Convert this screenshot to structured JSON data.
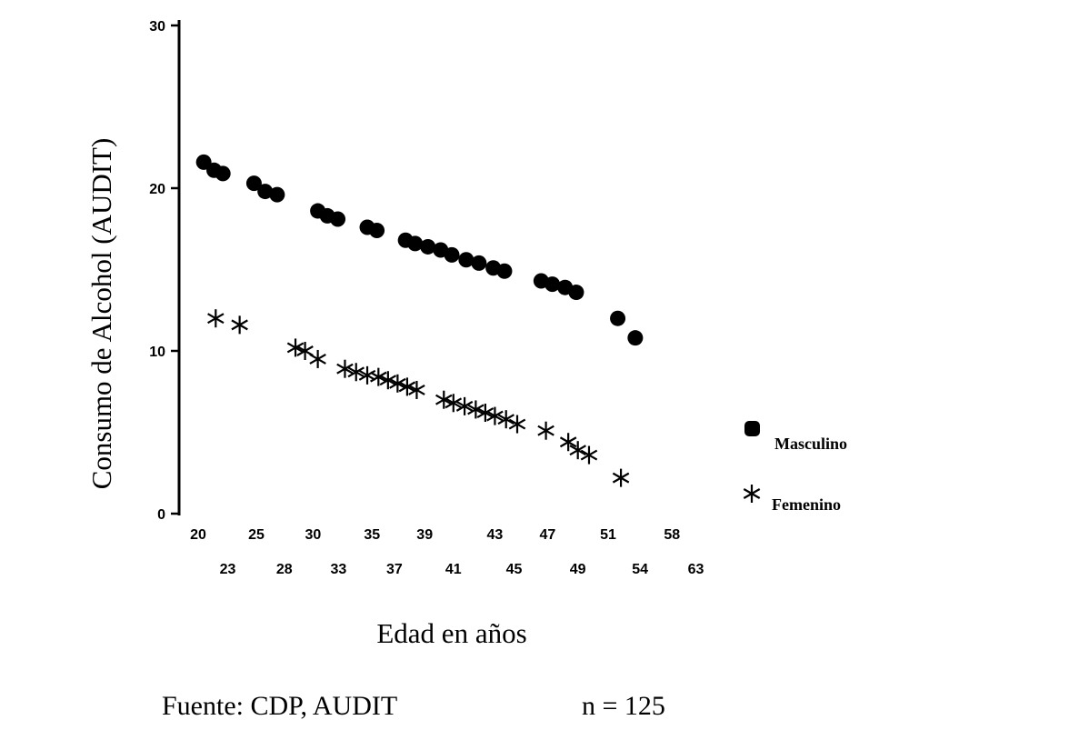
{
  "chart_data": {
    "type": "scatter",
    "title": "",
    "xlabel": "Edad en años",
    "ylabel": "Consumo de Alcohol (AUDIT)",
    "ylim": [
      0,
      30
    ],
    "y_ticks": [
      "0",
      "10",
      "20",
      "30"
    ],
    "x_ticks_row1": [
      "20",
      "25",
      "30",
      "35",
      "39",
      "43",
      "47",
      "51",
      "58"
    ],
    "x_ticks_row2": [
      "23",
      "28",
      "33",
      "37",
      "41",
      "45",
      "49",
      "54",
      "63"
    ],
    "grid": false,
    "legend_position": "right",
    "series": [
      {
        "name": "Masculino",
        "marker": "circle",
        "points": [
          {
            "pos": 0.35,
            "y": 21.6
          },
          {
            "pos": 1.0,
            "y": 21.1
          },
          {
            "pos": 1.55,
            "y": 20.9
          },
          {
            "pos": 3.5,
            "y": 20.3
          },
          {
            "pos": 4.2,
            "y": 19.8
          },
          {
            "pos": 4.95,
            "y": 19.6
          },
          {
            "pos": 7.5,
            "y": 18.6
          },
          {
            "pos": 8.1,
            "y": 18.3
          },
          {
            "pos": 8.75,
            "y": 18.1
          },
          {
            "pos": 10.6,
            "y": 17.6
          },
          {
            "pos": 11.2,
            "y": 17.4
          },
          {
            "pos": 13.0,
            "y": 16.8
          },
          {
            "pos": 13.6,
            "y": 16.6
          },
          {
            "pos": 14.4,
            "y": 16.4
          },
          {
            "pos": 15.2,
            "y": 16.2
          },
          {
            "pos": 15.9,
            "y": 15.9
          },
          {
            "pos": 16.8,
            "y": 15.6
          },
          {
            "pos": 17.6,
            "y": 15.4
          },
          {
            "pos": 18.5,
            "y": 15.1
          },
          {
            "pos": 19.2,
            "y": 14.9
          },
          {
            "pos": 21.5,
            "y": 14.3
          },
          {
            "pos": 22.2,
            "y": 14.1
          },
          {
            "pos": 23.0,
            "y": 13.9
          },
          {
            "pos": 23.7,
            "y": 13.6
          },
          {
            "pos": 26.3,
            "y": 12.0
          },
          {
            "pos": 27.4,
            "y": 10.8
          }
        ]
      },
      {
        "name": "Femenino",
        "marker": "asterisk",
        "points": [
          {
            "pos": 1.1,
            "y": 12.0
          },
          {
            "pos": 2.6,
            "y": 11.6
          },
          {
            "pos": 6.1,
            "y": 10.2
          },
          {
            "pos": 6.7,
            "y": 10.0
          },
          {
            "pos": 7.5,
            "y": 9.5
          },
          {
            "pos": 9.2,
            "y": 8.9
          },
          {
            "pos": 9.9,
            "y": 8.7
          },
          {
            "pos": 10.6,
            "y": 8.5
          },
          {
            "pos": 11.3,
            "y": 8.4
          },
          {
            "pos": 11.9,
            "y": 8.2
          },
          {
            "pos": 12.5,
            "y": 8.0
          },
          {
            "pos": 13.1,
            "y": 7.8
          },
          {
            "pos": 13.7,
            "y": 7.6
          },
          {
            "pos": 15.4,
            "y": 7.0
          },
          {
            "pos": 16.0,
            "y": 6.8
          },
          {
            "pos": 16.7,
            "y": 6.6
          },
          {
            "pos": 17.4,
            "y": 6.4
          },
          {
            "pos": 18.0,
            "y": 6.2
          },
          {
            "pos": 18.6,
            "y": 6.0
          },
          {
            "pos": 19.3,
            "y": 5.8
          },
          {
            "pos": 20.0,
            "y": 5.5
          },
          {
            "pos": 21.8,
            "y": 5.1
          },
          {
            "pos": 23.2,
            "y": 4.4
          },
          {
            "pos": 23.8,
            "y": 3.9
          },
          {
            "pos": 24.5,
            "y": 3.6
          },
          {
            "pos": 26.5,
            "y": 2.2
          }
        ]
      }
    ]
  },
  "legend": {
    "male_label": "Masculino",
    "female_label": "Femenino"
  },
  "footer": {
    "source": "Fuente: CDP, AUDIT",
    "n": "n = 125"
  }
}
